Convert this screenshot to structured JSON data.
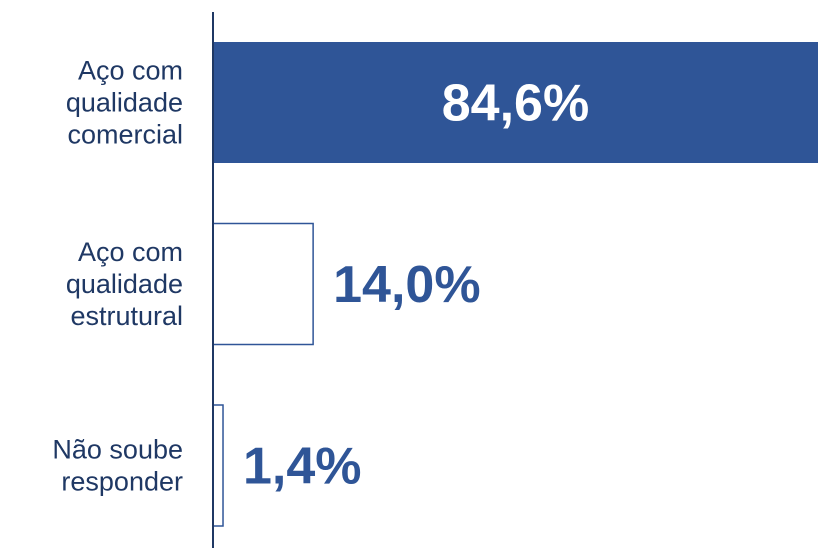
{
  "chart_data": {
    "type": "barh",
    "categories": [
      "Aço com\nqualidade\ncomercial",
      "Aço com\nqualidade\nestrutural",
      "Não soube\nresponder"
    ],
    "values": [
      84.6,
      14.0,
      1.4
    ],
    "value_labels": [
      "84,6%",
      "14,0%",
      "1,4%"
    ],
    "color": "#2f5597",
    "bar_fills": [
      "#2f5597",
      "#ffffff",
      "#ffffff"
    ],
    "xlim": [
      0,
      84.6
    ]
  }
}
